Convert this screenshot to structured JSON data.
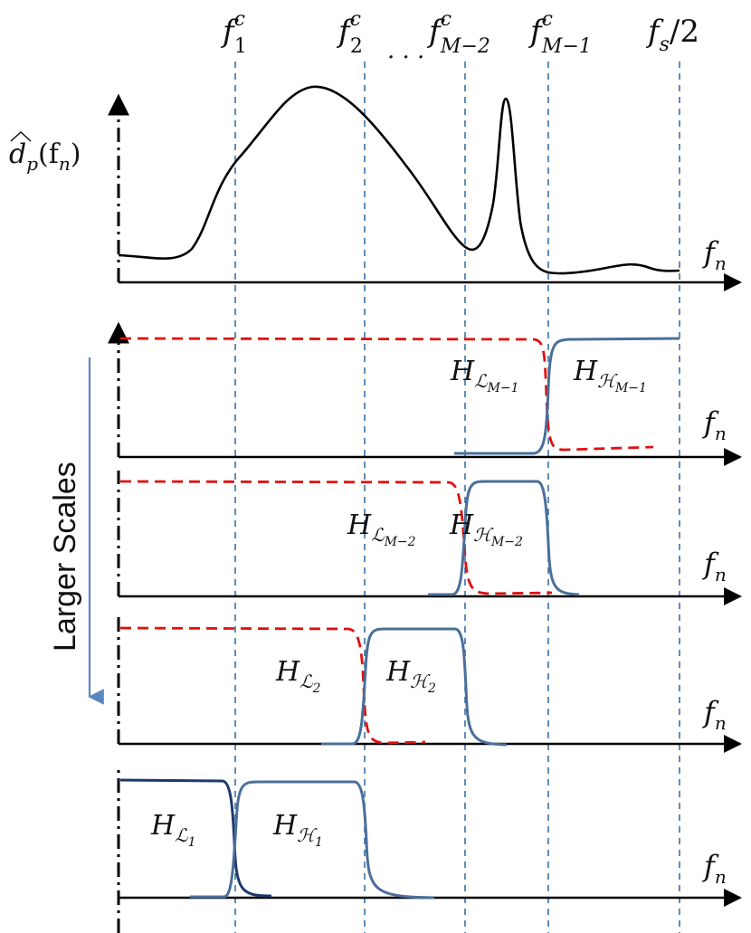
{
  "header": {
    "cutoff_labels": [
      {
        "base": "f",
        "sup": "c",
        "sub": "1"
      },
      {
        "base": "f",
        "sup": "c",
        "sub": "2"
      },
      {
        "base": "f",
        "sup": "c",
        "sub": "M−2"
      },
      {
        "base": "f",
        "sup": "c",
        "sub": "M−1"
      },
      {
        "base": "f",
        "sub": "s",
        "tail": "/2"
      }
    ],
    "ellipsis": "· · ·"
  },
  "psd_panel": {
    "y_label": {
      "base": "d",
      "sub": "p",
      "arg": "(f",
      "argsub": "n",
      "close": ")"
    },
    "x_label": {
      "base": "f",
      "sub": "n"
    }
  },
  "scale_arrow_label": "Larger Scales",
  "filter_panels": [
    {
      "x_label": {
        "base": "f",
        "sub": "n"
      },
      "low_label": {
        "base": "H",
        "sub": "ℒ",
        "subsub": "M−1"
      },
      "high_label": {
        "base": "H",
        "sub": "ℋ",
        "subsub": "M−1"
      }
    },
    {
      "x_label": {
        "base": "f",
        "sub": "n"
      },
      "low_label": {
        "base": "H",
        "sub": "ℒ",
        "subsub": "M−2"
      },
      "high_label": {
        "base": "H",
        "sub": "ℋ",
        "subsub": "M−2"
      }
    },
    {
      "x_label": {
        "base": "f",
        "sub": "n"
      },
      "low_label": {
        "base": "H",
        "sub": "ℒ",
        "subsub": "2"
      },
      "high_label": {
        "base": "H",
        "sub": "ℋ",
        "subsub": "2"
      }
    },
    {
      "x_label": {
        "base": "f",
        "sub": "n"
      },
      "low_label": {
        "base": "H",
        "sub": "ℒ",
        "subsub": "1"
      },
      "high_label": {
        "base": "H",
        "sub": "ℋ",
        "subsub": "1"
      }
    }
  ],
  "colors": {
    "axis": "#000000",
    "spectrum": "#000000",
    "gridline": "#3a6fa5",
    "lowpass": "#e01010",
    "highpass": "#4a6f9a",
    "arrow": "#5a86c0"
  }
}
